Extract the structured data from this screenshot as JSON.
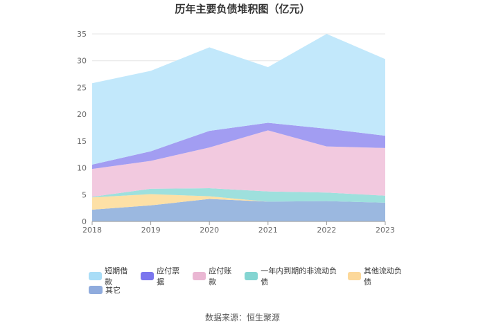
{
  "title": "历年主要负债堆积图（亿元）",
  "source": "数据来源：恒生聚源",
  "chart_data": {
    "type": "area",
    "stacked": true,
    "title": "历年主要负债堆积图（亿元）",
    "categories": [
      "2018",
      "2019",
      "2020",
      "2021",
      "2022",
      "2023"
    ],
    "ylim": [
      0,
      35
    ],
    "y_ticks": [
      "0",
      "5",
      "10",
      "15",
      "20",
      "25",
      "30",
      "35"
    ],
    "grid": true,
    "legend_position": "bottom",
    "series": [
      {
        "name": "其它",
        "color": "#9bb8e0",
        "values": [
          2.2,
          3.0,
          4.2,
          3.7,
          3.8,
          3.5
        ]
      },
      {
        "name": "其他流动负债",
        "color": "#fde0a6",
        "values": [
          2.3,
          2.1,
          0.5,
          0.0,
          0.0,
          0.0
        ]
      },
      {
        "name": "一年内到期的非流动负债",
        "color": "#9ee0dd",
        "values": [
          0.1,
          1.0,
          1.5,
          1.9,
          1.6,
          1.3
        ]
      },
      {
        "name": "应付账款",
        "color": "#f2c9df",
        "values": [
          5.2,
          5.2,
          7.6,
          11.4,
          8.6,
          8.9
        ]
      },
      {
        "name": "应付票据",
        "color": "#a29df2",
        "values": [
          0.8,
          1.8,
          3.1,
          1.4,
          3.3,
          2.3
        ]
      },
      {
        "name": "短期借款",
        "color": "#c2e8fb",
        "values": [
          15.2,
          15.0,
          15.6,
          10.4,
          17.7,
          14.3
        ]
      }
    ],
    "legend_order": [
      {
        "name": "短期借款",
        "color": "#a9ddf7"
      },
      {
        "name": "应付票据",
        "color": "#7b76ee"
      },
      {
        "name": "应付账款",
        "color": "#eab7d3"
      },
      {
        "name": "一年内到期的非流动负债",
        "color": "#84d5d2"
      },
      {
        "name": "其他流动负债",
        "color": "#fcd89a"
      },
      {
        "name": "其它",
        "color": "#8fabdd"
      }
    ]
  }
}
